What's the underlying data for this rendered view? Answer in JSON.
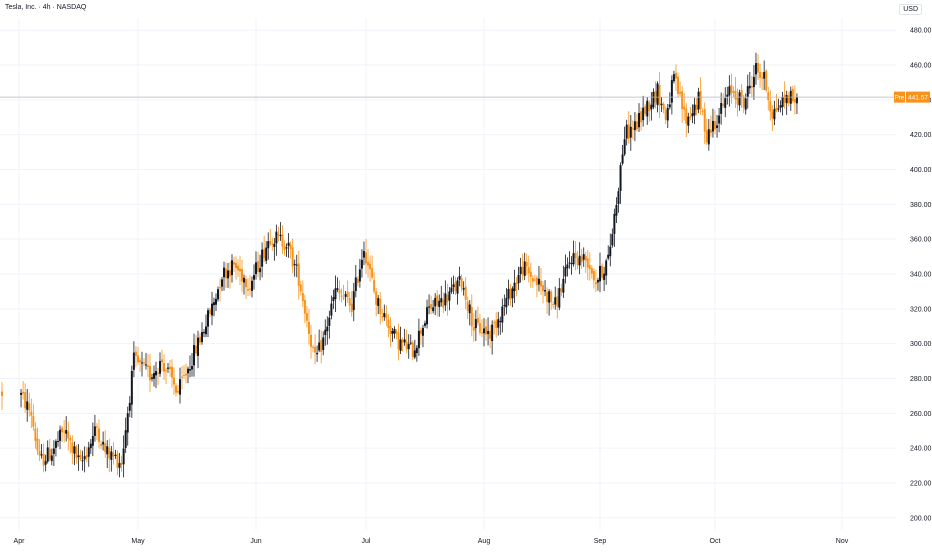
{
  "header": {
    "title": "Tesla, Inc. · 4h · NASDAQ",
    "currency": "USD"
  },
  "price_tag": {
    "label": "Pre",
    "value": "441.57"
  },
  "colors": {
    "up": "#131722",
    "down": "#f7931a",
    "grid": "#f0f3fa",
    "axis_text": "#131722",
    "line": "#b2b5be"
  },
  "chart_data": {
    "type": "candlestick",
    "title": "Tesla, Inc. · 4h · NASDAQ",
    "xlabel": "",
    "ylabel": "",
    "ylim": [
      193,
      487
    ],
    "y_ticks": [
      "200.00",
      "220.00",
      "240.00",
      "260.00",
      "280.00",
      "300.00",
      "320.00",
      "340.00",
      "360.00",
      "380.00",
      "400.00",
      "420.00",
      "440.00",
      "460.00",
      "480.00"
    ],
    "x_ticks": [
      "Apr",
      "May",
      "Jun",
      "Jul",
      "Aug",
      "Sep",
      "Oct",
      "Nov"
    ],
    "current_price": 441.57,
    "waypoints": [
      [
        0,
        272
      ],
      [
        6,
        260
      ],
      [
        10,
        232
      ],
      [
        16,
        238
      ],
      [
        22,
        250
      ],
      [
        30,
        230
      ],
      [
        38,
        252
      ],
      [
        42,
        238
      ],
      [
        50,
        232
      ],
      [
        56,
        290
      ],
      [
        64,
        282
      ],
      [
        70,
        290
      ],
      [
        78,
        272
      ],
      [
        88,
        300
      ],
      [
        96,
        324
      ],
      [
        100,
        340
      ],
      [
        106,
        345
      ],
      [
        114,
        334
      ],
      [
        124,
        362
      ],
      [
        132,
        358
      ],
      [
        138,
        338
      ],
      [
        146,
        290
      ],
      [
        150,
        302
      ],
      [
        156,
        330
      ],
      [
        164,
        322
      ],
      [
        170,
        356
      ],
      [
        176,
        325
      ],
      [
        186,
        302
      ],
      [
        194,
        296
      ],
      [
        202,
        320
      ],
      [
        210,
        326
      ],
      [
        218,
        336
      ],
      [
        224,
        310
      ],
      [
        232,
        306
      ],
      [
        238,
        320
      ],
      [
        248,
        344
      ],
      [
        256,
        334
      ],
      [
        264,
        322
      ],
      [
        272,
        350
      ],
      [
        280,
        348
      ],
      [
        284,
        336
      ],
      [
        290,
        348
      ],
      [
        294,
        382
      ],
      [
        298,
        420
      ],
      [
        304,
        426
      ],
      [
        308,
        435
      ],
      [
        314,
        445
      ],
      [
        318,
        430
      ],
      [
        322,
        452
      ],
      [
        328,
        428
      ],
      [
        334,
        440
      ],
      [
        338,
        420
      ],
      [
        344,
        432
      ],
      [
        350,
        446
      ],
      [
        356,
        438
      ],
      [
        362,
        458
      ],
      [
        366,
        452
      ],
      [
        370,
        432
      ],
      [
        374,
        438
      ],
      [
        378,
        442
      ],
      [
        382,
        440
      ]
    ]
  }
}
